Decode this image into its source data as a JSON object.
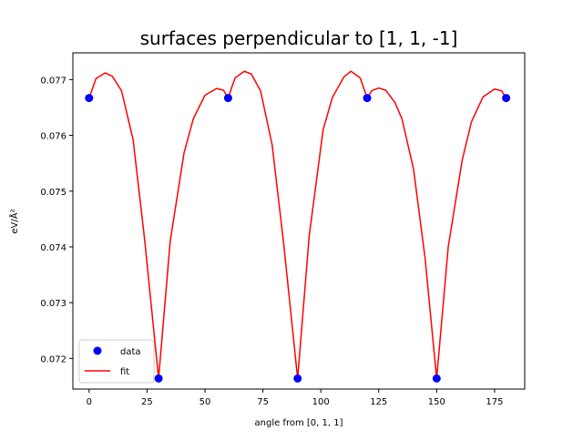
{
  "chart_data": {
    "type": "line",
    "title": "surfaces perpendicular to [1, 1, -1]",
    "xlabel": "angle from [0, 1, 1]",
    "ylabel": "eV/Å²",
    "xlim": [
      -7,
      188
    ],
    "ylim": [
      0.07145,
      0.07748
    ],
    "xticks": [
      0,
      25,
      50,
      75,
      100,
      125,
      150,
      175
    ],
    "yticks": [
      0.072,
      0.073,
      0.074,
      0.075,
      0.076,
      0.077
    ],
    "ytick_labels": [
      "0.072",
      "0.073",
      "0.074",
      "0.075",
      "0.076",
      "0.077"
    ],
    "grid": false,
    "legend_position": "lower-left",
    "series": [
      {
        "name": "data",
        "kind": "scatter",
        "color": "#0000ff",
        "x": [
          0,
          30,
          60,
          90,
          120,
          150,
          180
        ],
        "y": [
          0.07667,
          0.07164,
          0.07667,
          0.07164,
          0.07667,
          0.07164,
          0.07667
        ]
      },
      {
        "name": "fit",
        "kind": "line",
        "color": "#ff0000",
        "x": [
          0,
          3,
          7,
          10,
          14,
          19,
          24,
          30,
          35,
          41,
          45,
          50,
          55,
          58,
          60,
          63,
          67,
          70,
          74,
          79,
          84,
          90,
          95,
          101,
          105,
          110,
          113,
          117,
          120,
          122,
          125,
          128,
          132,
          135,
          140,
          145,
          150,
          155,
          161,
          165,
          170,
          175,
          178,
          180
        ],
        "y": [
          0.07667,
          0.07702,
          0.07712,
          0.07706,
          0.0768,
          0.07592,
          0.07412,
          0.07164,
          0.0741,
          0.07569,
          0.0763,
          0.07672,
          0.07684,
          0.07681,
          0.07667,
          0.07703,
          0.07715,
          0.0771,
          0.0768,
          0.07583,
          0.07405,
          0.07164,
          0.0742,
          0.0761,
          0.07668,
          0.07705,
          0.07715,
          0.07703,
          0.07667,
          0.0768,
          0.07685,
          0.07681,
          0.07659,
          0.0763,
          0.0754,
          0.0738,
          0.07164,
          0.074,
          0.07555,
          0.07624,
          0.07669,
          0.07683,
          0.0768,
          0.07667
        ]
      }
    ]
  }
}
